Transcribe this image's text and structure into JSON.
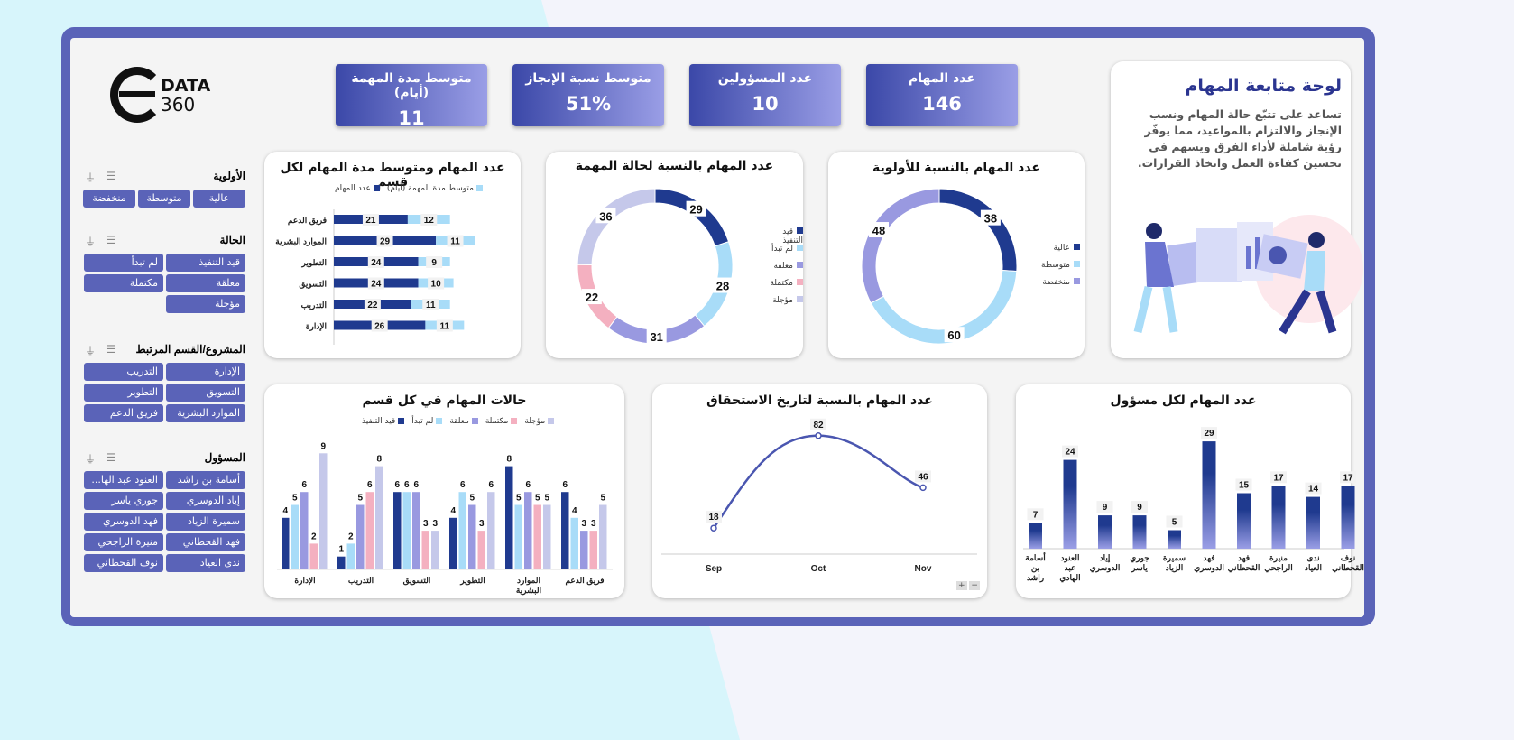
{
  "colors": {
    "frame": "#5a63b8",
    "navy": "#1f3a8f",
    "light_blue": "#a8dcf8",
    "purple": "#9999e0",
    "pink": "#f4b0c0",
    "lavender": "#c5c8ea",
    "slicer": "#5a63b8"
  },
  "logo": {
    "text": "DATA",
    "number": "360",
    "letter": "E"
  },
  "intro": {
    "title": "لوحة متابعة المهام",
    "description": "تساعد على تتبّع حالة المهام ونسب الإنجاز والالتزام بالمواعيد، مما يوفّر رؤية شاملة لأداء الفرق ويسهم في تحسين كفاءة العمل واتخاذ القرارات."
  },
  "kpis": [
    {
      "label": "عدد المهام",
      "value": "146"
    },
    {
      "label": "عدد المسؤولين",
      "value": "10"
    },
    {
      "label": "متوسط نسبة الإنجاز",
      "value": "51%"
    },
    {
      "label": "متوسط مدة المهمة (أيام)",
      "value": "11"
    }
  ],
  "slicers": [
    {
      "title": "الأولوية",
      "items": [
        "عالية",
        "متوسطة",
        "منخفضة"
      ]
    },
    {
      "title": "الحالة",
      "items": [
        "قيد التنفيذ",
        "لم تبدأ",
        "معلقة",
        "مكتملة",
        "مؤجلة"
      ]
    },
    {
      "title": "المشروع/القسم المرتبط",
      "items": [
        "الإدارة",
        "التدريب",
        "التسويق",
        "التطوير",
        "الموارد البشرية",
        "فريق الدعم"
      ]
    },
    {
      "title": "المسؤول",
      "items": [
        "أسامة بن راشد",
        "العنود عبد الها...",
        "إياد الدوسري",
        "جوري ياسر",
        "سميرة الزياد",
        "فهد الدوسري",
        "فهد القحطاني",
        "منيرة الراجحي",
        "ندى العياد",
        "نوف القحطاني"
      ]
    }
  ],
  "chart_data": [
    {
      "type": "bar",
      "orientation": "horizontal",
      "stacked": true,
      "title": "عدد المهام ومتوسط مدة المهام لكل قسم",
      "categories": [
        "فريق الدعم",
        "الموارد البشرية",
        "التطوير",
        "التسويق",
        "التدريب",
        "الإدارة"
      ],
      "series": [
        {
          "name": "عدد المهام",
          "values": [
            21,
            29,
            24,
            24,
            22,
            26
          ],
          "color": "#1f3a8f"
        },
        {
          "name": "متوسط مدة المهمة (أيام)",
          "values": [
            12,
            11,
            9,
            10,
            11,
            11
          ],
          "color": "#a8dcf8"
        }
      ],
      "legend": "top"
    },
    {
      "type": "pie",
      "donut": true,
      "title": "عدد المهام بالنسبة لحالة المهمة",
      "labels": [
        "قيد التنفيذ",
        "لم تبدأ",
        "معلقة",
        "مكتملة",
        "مؤجلة"
      ],
      "values": [
        29,
        28,
        31,
        22,
        36
      ],
      "colors": [
        "#1f3a8f",
        "#a8dcf8",
        "#9999e0",
        "#f4b0c0",
        "#c5c8ea"
      ],
      "legend": "right"
    },
    {
      "type": "pie",
      "donut": true,
      "title": "عدد المهام بالنسبة للأولوية",
      "labels": [
        "عالية",
        "متوسطة",
        "منخفضة"
      ],
      "values": [
        38,
        60,
        48
      ],
      "colors": [
        "#1f3a8f",
        "#a8dcf8",
        "#9999e0"
      ],
      "legend": "right"
    },
    {
      "type": "bar",
      "title": "حالات المهام في كل قسم",
      "categories": [
        "الإدارة",
        "التدريب",
        "التسويق",
        "التطوير",
        "الموارد البشرية",
        "فريق الدعم"
      ],
      "series": [
        {
          "name": "قيد التنفيذ",
          "values": [
            4,
            1,
            6,
            4,
            8,
            6
          ],
          "color": "#1f3a8f"
        },
        {
          "name": "لم تبدأ",
          "values": [
            5,
            2,
            6,
            6,
            5,
            4
          ],
          "color": "#a8dcf8"
        },
        {
          "name": "معلقة",
          "values": [
            6,
            5,
            6,
            5,
            6,
            3
          ],
          "color": "#9999e0"
        },
        {
          "name": "مكتملة",
          "values": [
            2,
            6,
            3,
            3,
            5,
            3
          ],
          "color": "#f4b0c0"
        },
        {
          "name": "مؤجلة",
          "values": [
            9,
            8,
            3,
            6,
            5,
            5
          ],
          "color": "#c5c8ea"
        }
      ],
      "legend": "top"
    },
    {
      "type": "line",
      "title": "عدد المهام بالنسبة لتاريخ الاستحقاق",
      "x": [
        "Sep",
        "Oct",
        "Nov"
      ],
      "y": [
        18,
        82,
        46
      ],
      "color": "#4a56b0"
    },
    {
      "type": "bar",
      "title": "عدد المهام لكل مسؤول",
      "categories": [
        "أسامة بن راشد",
        "العنود عبد الهادي",
        "إياد الدوسري",
        "جوري ياسر",
        "سميرة الزياد",
        "فهد الدوسري",
        "فهد القحطاني",
        "منيرة الراجحي",
        "ندى العياد",
        "نوف القحطاني"
      ],
      "values": [
        7,
        24,
        9,
        9,
        5,
        29,
        15,
        17,
        14,
        17
      ],
      "color": "#1f3a8f"
    }
  ]
}
